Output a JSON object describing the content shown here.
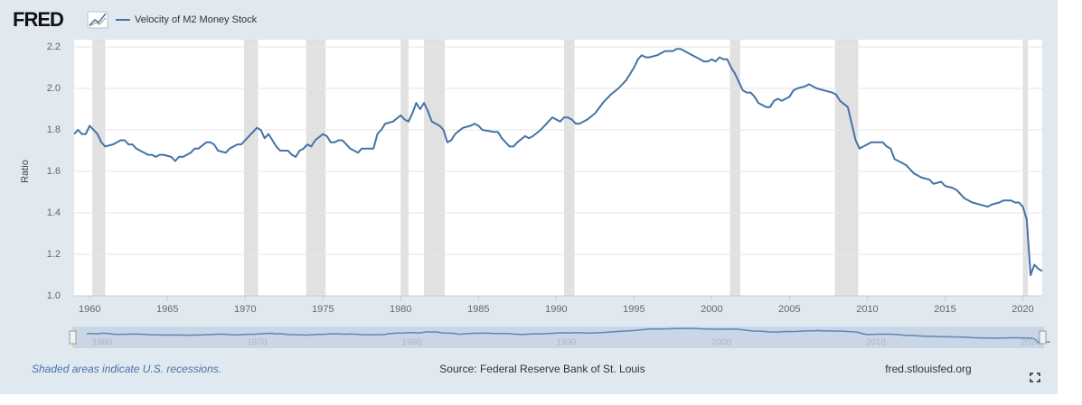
{
  "header": {
    "logo": "FRED"
  },
  "footer": {
    "note": "Shaded areas indicate U.S. recessions.",
    "source": "Source: Federal Reserve Bank of St. Louis",
    "site": "fred.stlouisfed.org"
  },
  "chart_data": {
    "type": "line",
    "y_label": "Ratio",
    "xlim": [
      1959,
      2021.25
    ],
    "xticks": [
      1960,
      1965,
      1970,
      1975,
      1980,
      1985,
      1990,
      1995,
      2000,
      2005,
      2010,
      2015,
      2020
    ],
    "ylim": [
      1.0,
      2.2
    ],
    "yticks": [
      {
        "value": 1.0,
        "label": "1.0"
      },
      1.2,
      1.4,
      1.6,
      1.8,
      {
        "value": 2.0,
        "label": "2.0"
      },
      2.2
    ],
    "grid": true,
    "recessions": [
      [
        1960.17,
        1961.0
      ],
      [
        1969.92,
        1970.83
      ],
      [
        1973.92,
        1975.17
      ],
      [
        1980.0,
        1980.5
      ],
      [
        1981.5,
        1982.83
      ],
      [
        1990.5,
        1991.17
      ],
      [
        2001.17,
        2001.83
      ],
      [
        2007.92,
        2009.42
      ],
      [
        2020.0,
        2020.33
      ]
    ],
    "navigator_ticks": [
      1960,
      1970,
      1980,
      1990,
      2000,
      2010,
      2020
    ],
    "x": [
      1959,
      1959.25,
      1959.5,
      1959.75,
      1960,
      1960.25,
      1960.5,
      1960.75,
      1961,
      1961.5,
      1962,
      1962.25,
      1962.5,
      1962.75,
      1963,
      1963.5,
      1963.75,
      1964,
      1964.25,
      1964.5,
      1964.75,
      1965.25,
      1965.5,
      1965.75,
      1966,
      1966.5,
      1966.75,
      1967,
      1967.5,
      1967.75,
      1968,
      1968.25,
      1968.75,
      1969,
      1969.5,
      1969.75,
      1970,
      1970.25,
      1970.75,
      1971,
      1971.25,
      1971.5,
      1971.75,
      1972,
      1972.25,
      1972.75,
      1973,
      1973.25,
      1973.5,
      1973.75,
      1974,
      1974.25,
      1974.5,
      1975,
      1975.25,
      1975.5,
      1975.75,
      1976,
      1976.25,
      1976.5,
      1976.75,
      1977,
      1977.25,
      1977.5,
      1977.75,
      1978.25,
      1978.5,
      1978.75,
      1979,
      1979.5,
      1980,
      1980.25,
      1980.5,
      1980.75,
      1981,
      1981.25,
      1981.5,
      1981.75,
      1982,
      1982.5,
      1982.75,
      1983,
      1983.25,
      1983.5,
      1984,
      1984.5,
      1984.75,
      1985,
      1985.25,
      1986,
      1986.25,
      1986.5,
      1986.75,
      1987,
      1987.25,
      1987.5,
      1988,
      1988.25,
      1988.5,
      1989,
      1989.5,
      1989.75,
      1990,
      1990.25,
      1990.5,
      1990.75,
      1991,
      1991.25,
      1991.5,
      1992,
      1992.5,
      1993,
      1993.5,
      1994,
      1994.5,
      1995,
      1995.25,
      1995.5,
      1995.75,
      1996,
      1996.5,
      1996.75,
      1997,
      1997.5,
      1997.75,
      1998,
      1998.5,
      1998.75,
      1999,
      1999.5,
      1999.75,
      2000,
      2000.25,
      2000.5,
      2000.75,
      2001,
      2001.25,
      2001.5,
      2001.75,
      2002,
      2002.25,
      2002.5,
      2002.75,
      2003,
      2003.5,
      2003.75,
      2004,
      2004.25,
      2004.5,
      2004.75,
      2005,
      2005.25,
      2005.5,
      2006,
      2006.25,
      2006.5,
      2006.75,
      2007.25,
      2007.75,
      2008,
      2008.25,
      2008.75,
      2009,
      2009.25,
      2009.5,
      2009.75,
      2010,
      2010.25,
      2010.75,
      2011,
      2011.25,
      2011.5,
      2011.75,
      2012.25,
      2012.5,
      2012.75,
      2013,
      2013.5,
      2014,
      2014.25,
      2014.75,
      2015,
      2015.5,
      2015.75,
      2016,
      2016.25,
      2016.75,
      2017.25,
      2017.75,
      2018,
      2018.5,
      2018.75,
      2019.25,
      2019.5,
      2019.75,
      2020,
      2020.25,
      2020.5,
      2020.75,
      2021,
      2021.25
    ],
    "series": [
      {
        "name": "Velocity of M2 Money Stock",
        "color": "#4572a7",
        "values": [
          1.78,
          1.8,
          1.78,
          1.78,
          1.82,
          1.8,
          1.78,
          1.74,
          1.72,
          1.73,
          1.75,
          1.75,
          1.73,
          1.73,
          1.71,
          1.69,
          1.68,
          1.68,
          1.67,
          1.68,
          1.68,
          1.67,
          1.65,
          1.67,
          1.67,
          1.69,
          1.71,
          1.71,
          1.74,
          1.74,
          1.73,
          1.7,
          1.69,
          1.71,
          1.73,
          1.73,
          1.75,
          1.77,
          1.81,
          1.8,
          1.76,
          1.78,
          1.75,
          1.72,
          1.7,
          1.7,
          1.68,
          1.67,
          1.7,
          1.71,
          1.73,
          1.72,
          1.75,
          1.78,
          1.77,
          1.74,
          1.74,
          1.75,
          1.75,
          1.73,
          1.71,
          1.7,
          1.69,
          1.71,
          1.71,
          1.71,
          1.78,
          1.8,
          1.83,
          1.84,
          1.87,
          1.85,
          1.84,
          1.88,
          1.93,
          1.9,
          1.93,
          1.89,
          1.84,
          1.82,
          1.8,
          1.74,
          1.75,
          1.78,
          1.81,
          1.82,
          1.83,
          1.82,
          1.8,
          1.79,
          1.79,
          1.76,
          1.74,
          1.72,
          1.72,
          1.74,
          1.77,
          1.76,
          1.77,
          1.8,
          1.84,
          1.86,
          1.85,
          1.84,
          1.86,
          1.86,
          1.85,
          1.83,
          1.83,
          1.85,
          1.88,
          1.93,
          1.97,
          2.0,
          2.04,
          2.1,
          2.14,
          2.16,
          2.15,
          2.15,
          2.16,
          2.17,
          2.18,
          2.18,
          2.19,
          2.19,
          2.17,
          2.16,
          2.15,
          2.13,
          2.13,
          2.14,
          2.13,
          2.15,
          2.14,
          2.14,
          2.1,
          2.07,
          2.03,
          1.99,
          1.98,
          1.98,
          1.96,
          1.93,
          1.91,
          1.91,
          1.94,
          1.95,
          1.94,
          1.95,
          1.96,
          1.99,
          2.0,
          2.01,
          2.02,
          2.01,
          2.0,
          1.99,
          1.98,
          1.97,
          1.94,
          1.91,
          1.83,
          1.75,
          1.71,
          1.72,
          1.73,
          1.74,
          1.74,
          1.74,
          1.72,
          1.71,
          1.66,
          1.64,
          1.63,
          1.61,
          1.59,
          1.57,
          1.56,
          1.54,
          1.55,
          1.53,
          1.52,
          1.51,
          1.49,
          1.47,
          1.45,
          1.44,
          1.43,
          1.44,
          1.45,
          1.46,
          1.46,
          1.45,
          1.45,
          1.43,
          1.37,
          1.1,
          1.15,
          1.13,
          1.12
        ]
      }
    ]
  }
}
